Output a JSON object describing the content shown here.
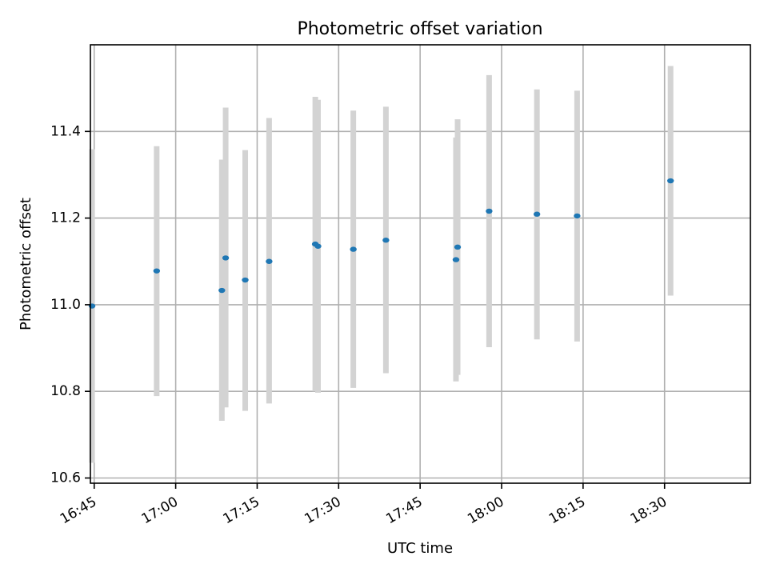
{
  "chart_data": {
    "type": "scatter",
    "title": "Photometric offset variation",
    "xlabel": "UTC time",
    "ylabel": "Photometric offset",
    "xlim": [
      "16:44:18",
      "18:45:48"
    ],
    "ylim": [
      10.588,
      11.6
    ],
    "x_ticks": [
      "16:45",
      "17:00",
      "17:15",
      "17:30",
      "17:45",
      "18:00",
      "18:15",
      "18:30"
    ],
    "y_ticks": [
      "10.6",
      "10.8",
      "11.0",
      "11.2",
      "11.4"
    ],
    "grid": true,
    "colors": {
      "point": "#1f77b4",
      "errorbar": "#d3d3d3",
      "grid": "#b0b0b0"
    },
    "series": [
      {
        "points": [
          {
            "x": "16:44:36",
            "y": 10.997,
            "ylow": 10.635,
            "yhigh": 11.359
          },
          {
            "x": "16:56:30",
            "y": 11.078,
            "ylow": 10.789,
            "yhigh": 11.366
          },
          {
            "x": "17:08:30",
            "y": 11.033,
            "ylow": 10.732,
            "yhigh": 11.335
          },
          {
            "x": "17:09:12",
            "y": 11.108,
            "ylow": 10.763,
            "yhigh": 11.455
          },
          {
            "x": "17:12:48",
            "y": 11.057,
            "ylow": 10.755,
            "yhigh": 11.357
          },
          {
            "x": "17:17:12",
            "y": 11.1,
            "ylow": 10.772,
            "yhigh": 11.431
          },
          {
            "x": "17:25:42",
            "y": 11.14,
            "ylow": 10.8,
            "yhigh": 11.48
          },
          {
            "x": "17:26:12",
            "y": 11.135,
            "ylow": 10.797,
            "yhigh": 11.473
          },
          {
            "x": "17:32:42",
            "y": 11.128,
            "ylow": 10.808,
            "yhigh": 11.448
          },
          {
            "x": "17:38:42",
            "y": 11.149,
            "ylow": 10.842,
            "yhigh": 11.457
          },
          {
            "x": "17:51:36",
            "y": 11.104,
            "ylow": 10.823,
            "yhigh": 11.386
          },
          {
            "x": "17:51:54",
            "y": 11.133,
            "ylow": 10.838,
            "yhigh": 11.428
          },
          {
            "x": "17:57:42",
            "y": 11.216,
            "ylow": 10.902,
            "yhigh": 11.53
          },
          {
            "x": "18:06:30",
            "y": 11.209,
            "ylow": 10.92,
            "yhigh": 11.497
          },
          {
            "x": "18:13:54",
            "y": 11.205,
            "ylow": 10.915,
            "yhigh": 11.494
          },
          {
            "x": "18:31:06",
            "y": 11.286,
            "ylow": 11.021,
            "yhigh": 11.551
          }
        ]
      }
    ]
  }
}
